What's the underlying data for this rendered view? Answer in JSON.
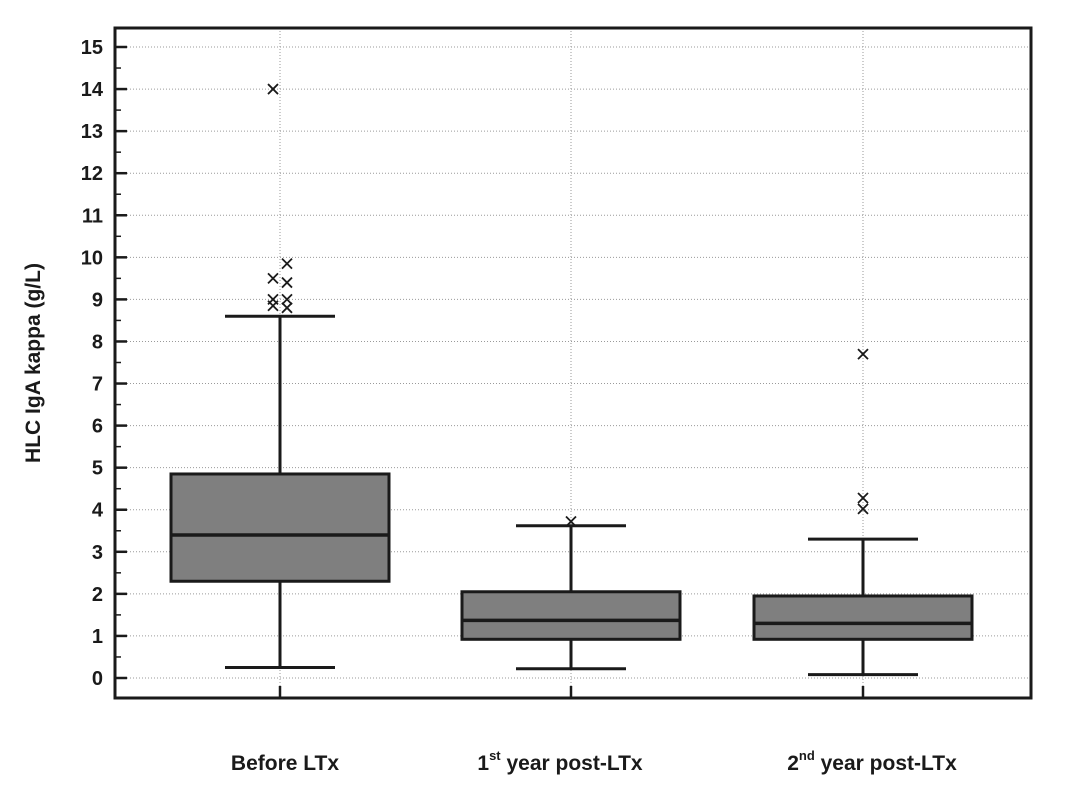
{
  "chart_data": {
    "type": "box",
    "ylabel": "HLC IgA kappa (g/L)",
    "ylim": [
      0,
      15
    ],
    "yticks": [
      "0",
      "1",
      "2",
      "3",
      "4",
      "5",
      "6",
      "7",
      "8",
      "9",
      "10",
      "11",
      "12",
      "13",
      "14",
      "15"
    ],
    "grid": true,
    "categories": [
      {
        "base": "Before LTx",
        "sup": "",
        "rest": ""
      },
      {
        "base": "1",
        "sup": "st",
        "rest": "  year post-LTx"
      },
      {
        "base": "2",
        "sup": "nd",
        "rest": "  year post-LTx"
      }
    ],
    "boxes": [
      {
        "whisker_low": 0.25,
        "q1": 2.3,
        "median": 3.4,
        "q3": 4.85,
        "whisker_high": 8.6,
        "outliers": [
          14.0,
          9.85,
          9.5,
          9.4,
          9.0,
          9.0,
          8.85,
          8.8
        ]
      },
      {
        "whisker_low": 0.22,
        "q1": 0.92,
        "median": 1.37,
        "q3": 2.05,
        "whisker_high": 3.62,
        "outliers": [
          3.72
        ]
      },
      {
        "whisker_low": 0.08,
        "q1": 0.92,
        "median": 1.3,
        "q3": 1.95,
        "whisker_high": 3.3,
        "outliers": [
          7.7,
          4.28,
          4.02
        ]
      }
    ],
    "colors": {
      "box_fill": "#7f7f7f",
      "line": "#1a1a1a",
      "grid": "#9a9a9a"
    }
  }
}
